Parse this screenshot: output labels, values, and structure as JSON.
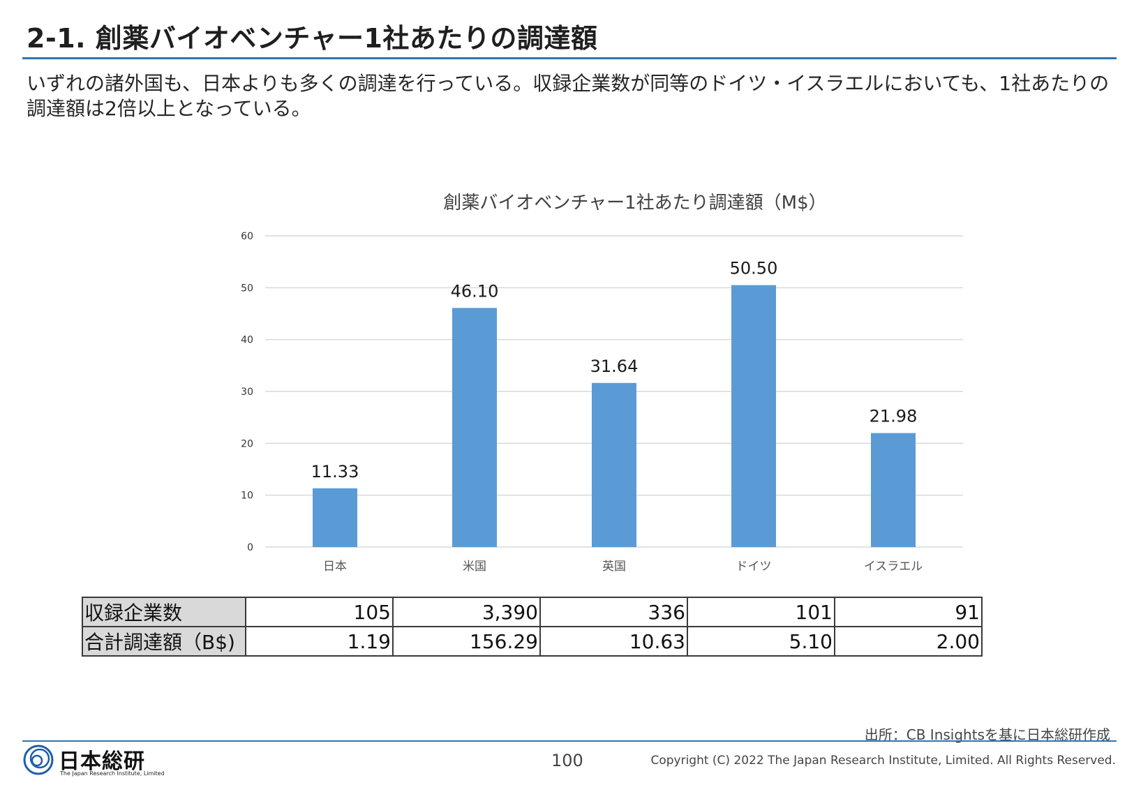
{
  "header": {
    "title": "2-1. 創薬バイオベンチャー1社あたりの調達額",
    "lead": "いずれの諸外国も、日本よりも多くの調達を行っている。収録企業数が同等のドイツ・イスラエルにおいても、1社あたりの調達額は2倍以上となっている。"
  },
  "chart_data": {
    "type": "bar",
    "title": "創薬バイオベンチャー1社あたり調達額（M$）",
    "categories": [
      "日本",
      "米国",
      "英国",
      "ドイツ",
      "イスラエル"
    ],
    "values": [
      11.33,
      46.1,
      31.64,
      50.5,
      21.98
    ],
    "value_labels": [
      "11.33",
      "46.10",
      "31.64",
      "50.50",
      "21.98"
    ],
    "yticks": [
      "0",
      "10",
      "20",
      "30",
      "40",
      "50",
      "60"
    ],
    "ylim": [
      0,
      60
    ],
    "grid": true,
    "bar_color": "#5b9bd5",
    "xlabel": "",
    "ylabel": ""
  },
  "table": {
    "rows": [
      {
        "label": "収録企業数",
        "values": [
          "105",
          "3,390",
          "336",
          "101",
          "91"
        ]
      },
      {
        "label": "合計調達額（B$)",
        "values": [
          "1.19",
          "156.29",
          "10.63",
          "5.10",
          "2.00"
        ]
      }
    ]
  },
  "footer": {
    "source": "出所：CB Insightsを基に日本総研作成",
    "logo_text": "日本総研",
    "logo_sub": "The Japan Research Institute, Limited",
    "page_number": "100",
    "copyright": "Copyright (C) 2022 The Japan Research Institute, Limited. All Rights Reserved."
  },
  "colors": {
    "accent": "#2e75b6",
    "bar": "#5b9bd5",
    "grid": "#d9d9d9"
  }
}
